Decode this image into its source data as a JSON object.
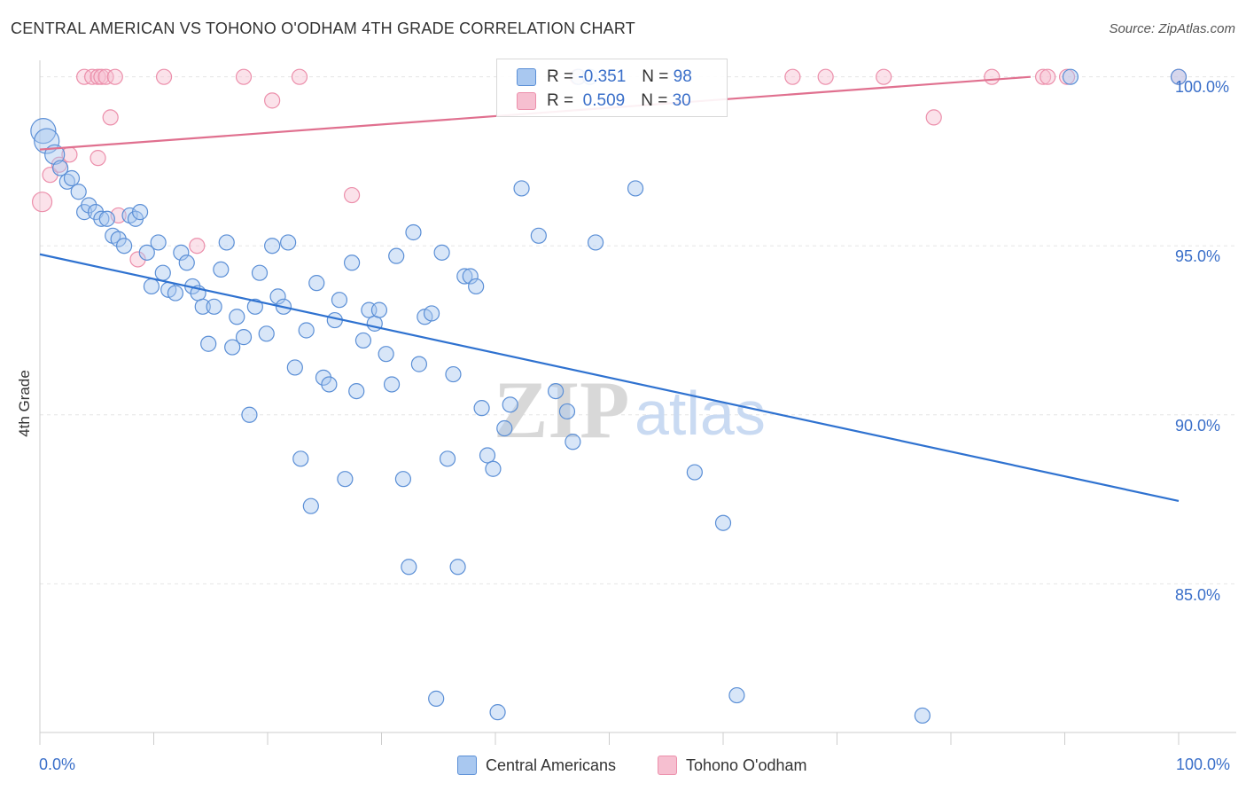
{
  "title": "CENTRAL AMERICAN VS TOHONO O'ODHAM 4TH GRADE CORRELATION CHART",
  "source": "Source: ZipAtlas.com",
  "watermark": {
    "zip": "ZIP",
    "atlas": "atlas"
  },
  "legend": {
    "r_label": "R =",
    "n_label": "N =",
    "series": [
      {
        "r": "-0.351",
        "n": "98"
      },
      {
        "r": "0.509",
        "n": "30"
      }
    ]
  },
  "bottom_legend": [
    "Central Americans",
    "Tohono O'odham"
  ],
  "colors": {
    "blue_fill": "#a9c8f0",
    "blue_stroke": "#5b8fd6",
    "blue_line": "#2f72d0",
    "pink_fill": "#f6bfd0",
    "pink_stroke": "#ec8fab",
    "pink_line": "#e0708f",
    "grid": "#e5e5e5",
    "axis_text": "#3a6fc9"
  },
  "chart_data": {
    "type": "scatter",
    "title": "CENTRAL AMERICAN VS TOHONO O'ODHAM 4TH GRADE CORRELATION CHART",
    "xlabel": "",
    "ylabel": "4th Grade",
    "xlim": [
      0,
      100
    ],
    "ylim": [
      80.6,
      100.7
    ],
    "x_tick_labels": [
      "0.0%",
      "100.0%"
    ],
    "y_ticks": [
      85,
      90,
      95,
      100
    ],
    "y_tick_labels": [
      "85.0%",
      "90.0%",
      "95.0%",
      "100.0%"
    ],
    "grid": true,
    "legend_position": "top-center",
    "series": [
      {
        "name": "Central Americans",
        "color": "#5b8fd6",
        "r": -0.351,
        "n": 98,
        "trend": {
          "x": [
            0,
            100
          ],
          "y": [
            94.75,
            87.45
          ]
        },
        "points": [
          [
            0.3,
            98.4
          ],
          [
            0.6,
            98.1
          ],
          [
            1.3,
            97.7
          ],
          [
            1.8,
            97.3
          ],
          [
            2.4,
            96.9
          ],
          [
            2.8,
            97.0
          ],
          [
            3.4,
            96.6
          ],
          [
            3.9,
            96.0
          ],
          [
            4.3,
            96.2
          ],
          [
            4.9,
            96.0
          ],
          [
            5.4,
            95.8
          ],
          [
            5.9,
            95.8
          ],
          [
            6.4,
            95.3
          ],
          [
            6.9,
            95.2
          ],
          [
            7.4,
            95.0
          ],
          [
            7.9,
            95.9
          ],
          [
            8.4,
            95.8
          ],
          [
            8.8,
            96.0
          ],
          [
            9.4,
            94.8
          ],
          [
            9.8,
            93.8
          ],
          [
            10.4,
            95.1
          ],
          [
            10.8,
            94.2
          ],
          [
            11.3,
            93.7
          ],
          [
            11.9,
            93.6
          ],
          [
            12.4,
            94.8
          ],
          [
            12.9,
            94.5
          ],
          [
            13.4,
            93.8
          ],
          [
            13.9,
            93.6
          ],
          [
            14.3,
            93.2
          ],
          [
            14.8,
            92.1
          ],
          [
            15.3,
            93.2
          ],
          [
            15.9,
            94.3
          ],
          [
            16.4,
            95.1
          ],
          [
            16.9,
            92.0
          ],
          [
            17.3,
            92.9
          ],
          [
            17.9,
            92.3
          ],
          [
            18.4,
            90.0
          ],
          [
            18.9,
            93.2
          ],
          [
            19.3,
            94.2
          ],
          [
            19.9,
            92.4
          ],
          [
            20.4,
            95.0
          ],
          [
            20.9,
            93.5
          ],
          [
            21.4,
            93.2
          ],
          [
            21.8,
            95.1
          ],
          [
            22.4,
            91.4
          ],
          [
            22.9,
            88.7
          ],
          [
            23.4,
            92.5
          ],
          [
            23.8,
            87.3
          ],
          [
            24.3,
            93.9
          ],
          [
            24.9,
            91.1
          ],
          [
            25.4,
            90.9
          ],
          [
            25.9,
            92.8
          ],
          [
            26.3,
            93.4
          ],
          [
            26.8,
            88.1
          ],
          [
            27.4,
            94.5
          ],
          [
            27.8,
            90.7
          ],
          [
            28.4,
            92.2
          ],
          [
            28.9,
            93.1
          ],
          [
            29.4,
            92.7
          ],
          [
            29.8,
            93.1
          ],
          [
            30.4,
            91.8
          ],
          [
            30.9,
            90.9
          ],
          [
            31.3,
            94.7
          ],
          [
            31.9,
            88.1
          ],
          [
            32.4,
            85.5
          ],
          [
            32.8,
            95.4
          ],
          [
            33.3,
            91.5
          ],
          [
            33.8,
            92.9
          ],
          [
            34.4,
            93.0
          ],
          [
            34.8,
            81.6
          ],
          [
            35.3,
            94.8
          ],
          [
            35.8,
            88.7
          ],
          [
            36.3,
            91.2
          ],
          [
            36.7,
            85.5
          ],
          [
            37.3,
            94.1
          ],
          [
            37.8,
            94.1
          ],
          [
            38.3,
            93.8
          ],
          [
            38.8,
            90.2
          ],
          [
            39.3,
            88.8
          ],
          [
            39.8,
            88.4
          ],
          [
            40.2,
            81.2
          ],
          [
            40.8,
            89.6
          ],
          [
            41.3,
            90.3
          ],
          [
            42.3,
            96.7
          ],
          [
            43.8,
            95.3
          ],
          [
            45.3,
            90.7
          ],
          [
            46.3,
            90.1
          ],
          [
            46.8,
            89.2
          ],
          [
            47.3,
            100.0
          ],
          [
            48.3,
            100.0
          ],
          [
            48.8,
            95.1
          ],
          [
            52.3,
            96.7
          ],
          [
            57.5,
            88.3
          ],
          [
            60.0,
            86.8
          ],
          [
            61.2,
            81.7
          ],
          [
            77.5,
            81.1
          ],
          [
            90.5,
            100.0
          ],
          [
            100.0,
            100.0
          ]
        ]
      },
      {
        "name": "Tohono O'odham",
        "color": "#ec8fab",
        "r": 0.509,
        "n": 30,
        "trend": {
          "x": [
            0,
            87
          ],
          "y": [
            97.85,
            100.0
          ]
        },
        "points": [
          [
            0.2,
            96.3
          ],
          [
            0.9,
            97.1
          ],
          [
            1.7,
            97.4
          ],
          [
            2.6,
            97.7
          ],
          [
            3.9,
            100.0
          ],
          [
            4.6,
            100.0
          ],
          [
            5.1,
            100.0
          ],
          [
            5.4,
            100.0
          ],
          [
            5.8,
            100.0
          ],
          [
            6.2,
            98.8
          ],
          [
            6.6,
            100.0
          ],
          [
            6.9,
            95.9
          ],
          [
            8.6,
            94.6
          ],
          [
            10.9,
            100.0
          ],
          [
            13.8,
            95.0
          ],
          [
            17.9,
            100.0
          ],
          [
            20.4,
            99.3
          ],
          [
            22.8,
            100.0
          ],
          [
            27.4,
            96.5
          ],
          [
            5.1,
            97.6
          ],
          [
            47.2,
            100.0
          ],
          [
            66.1,
            100.0
          ],
          [
            69.0,
            100.0
          ],
          [
            74.1,
            100.0
          ],
          [
            78.5,
            98.8
          ],
          [
            83.6,
            100.0
          ],
          [
            88.1,
            100.0
          ],
          [
            88.5,
            100.0
          ],
          [
            90.2,
            100.0
          ],
          [
            100.0,
            100.0
          ]
        ]
      }
    ]
  }
}
